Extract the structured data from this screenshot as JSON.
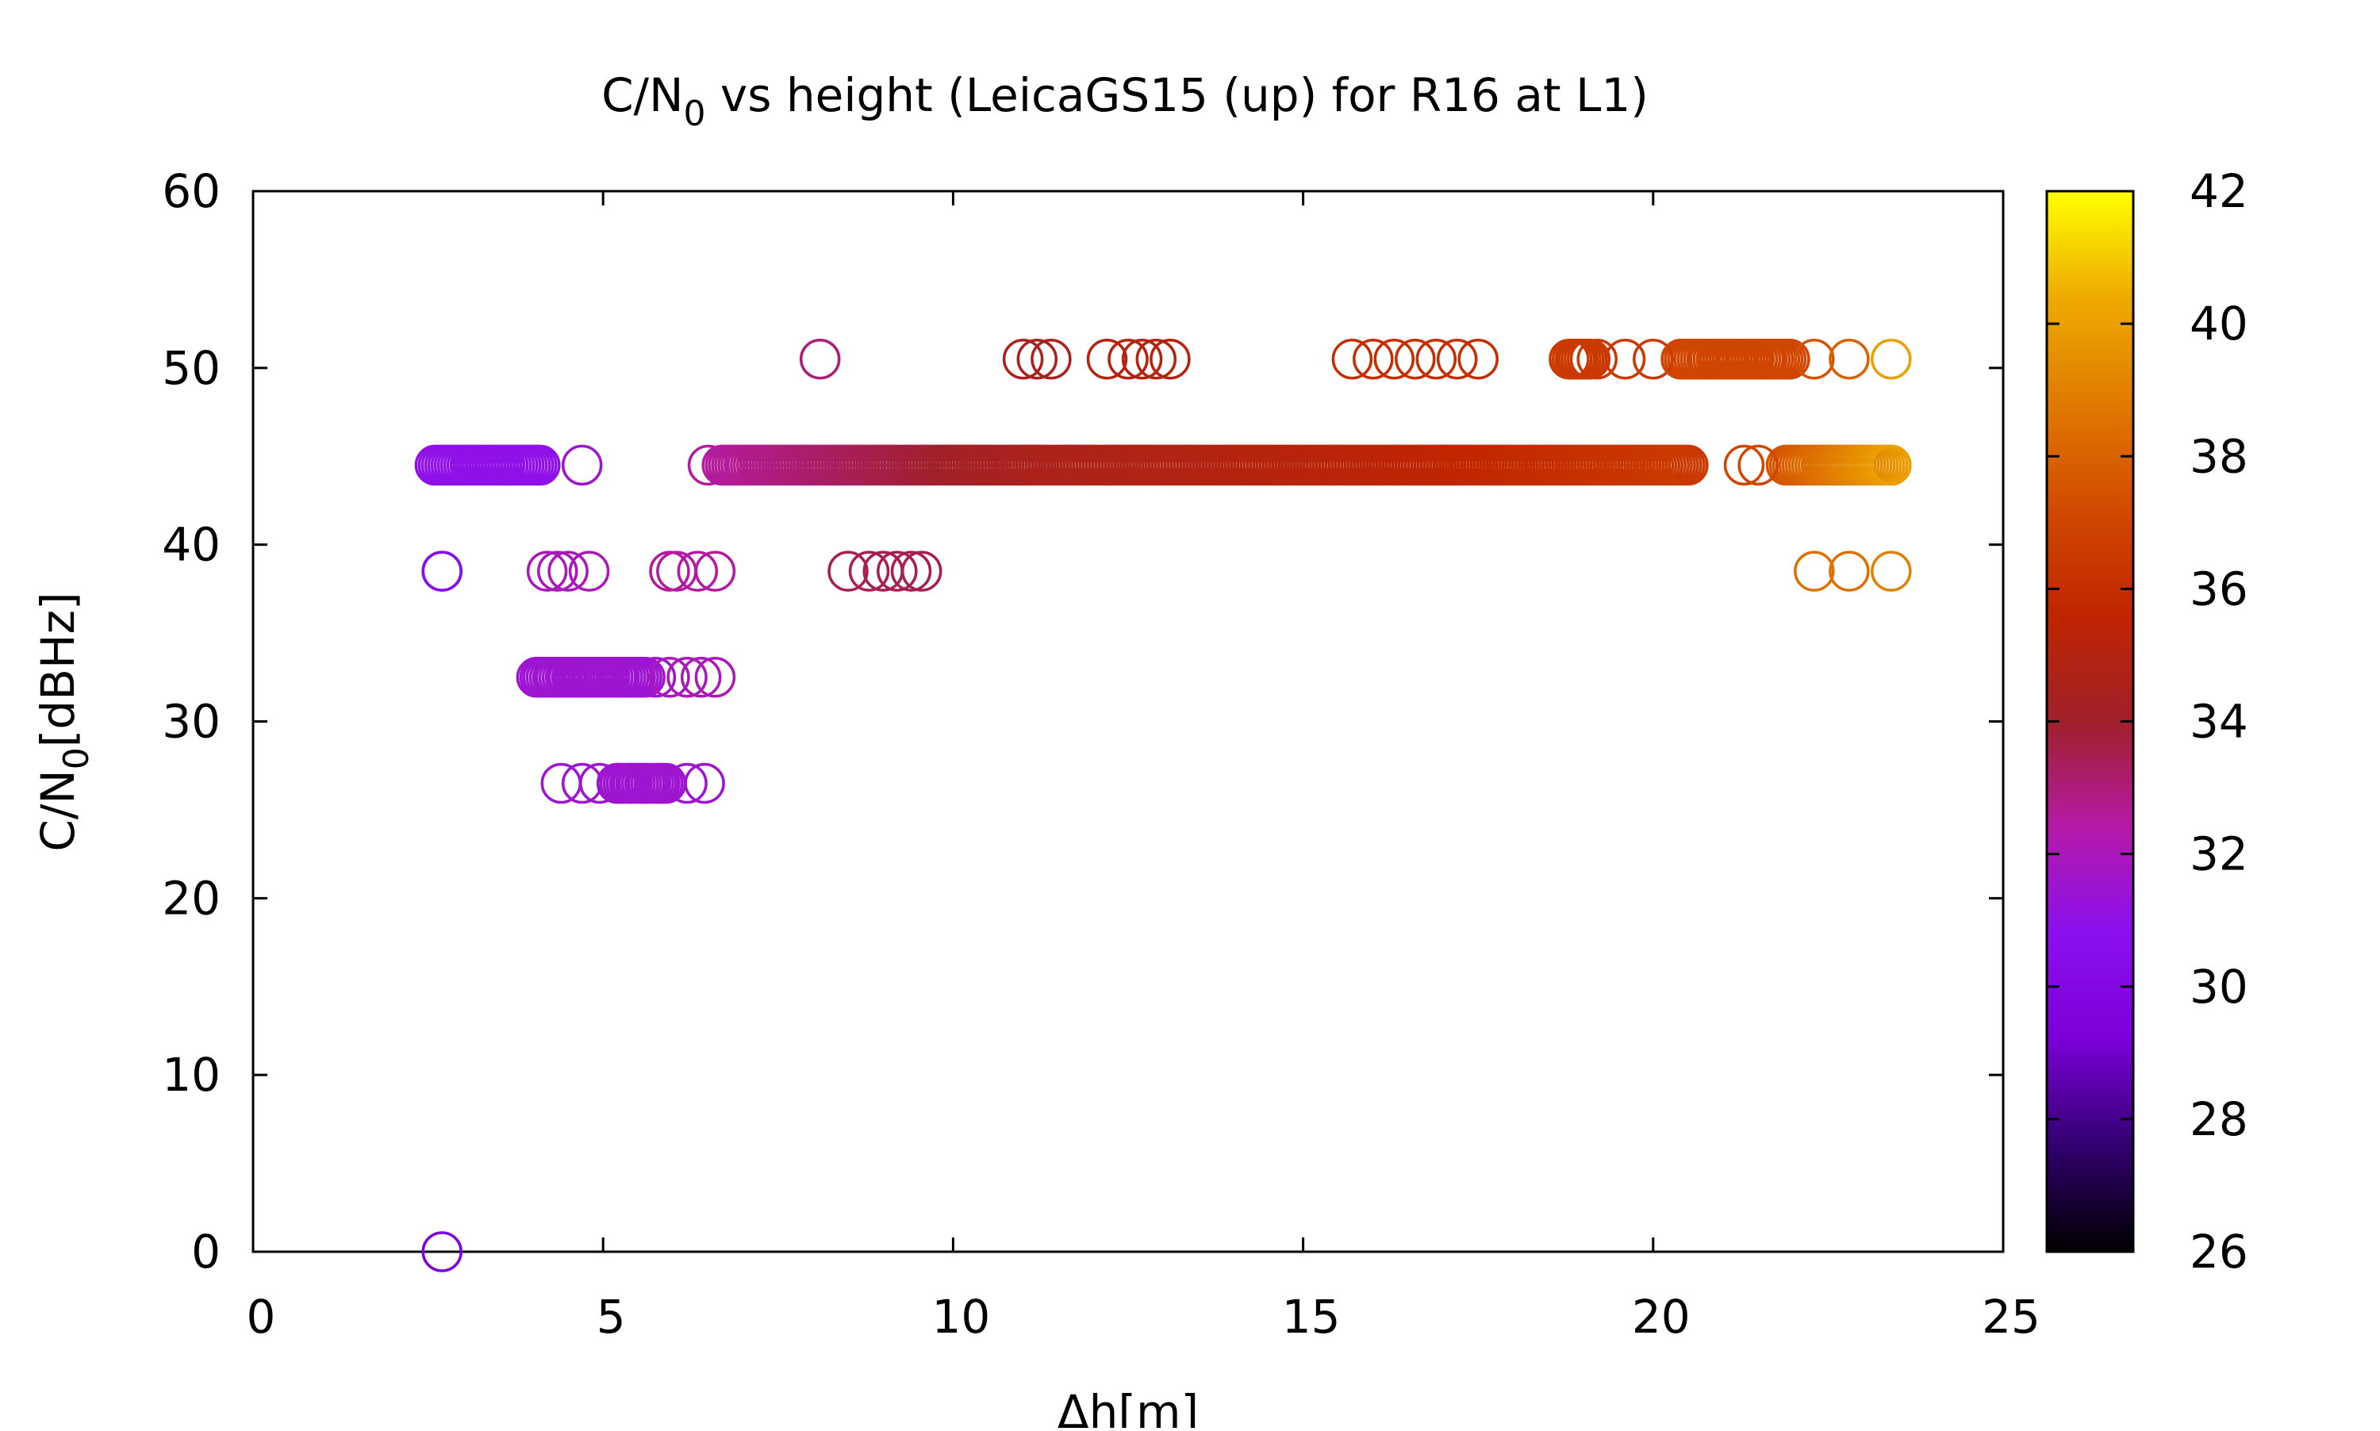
{
  "chart_data": {
    "type": "scatter",
    "title_main": "C/N",
    "title_sub": "0",
    "title_rest": " vs height (LeicaGS15 (up) for R16 at L1)",
    "xlabel": "Δh[m]",
    "ylabel_main": "C/N",
    "ylabel_sub": "0",
    "ylabel_rest": "[dBHz]",
    "xlim": [
      0,
      25
    ],
    "ylim": [
      0,
      60
    ],
    "xticks": [
      "0",
      "5",
      "10",
      "15",
      "20",
      "25"
    ],
    "yticks": [
      "0",
      "10",
      "20",
      "30",
      "40",
      "50",
      "60"
    ],
    "colorbar": {
      "range": [
        26,
        42
      ],
      "ticks": [
        "26",
        "28",
        "30",
        "32",
        "34",
        "36",
        "38",
        "40",
        "42"
      ],
      "colors": [
        "#000000",
        "#320070",
        "#7b00d8",
        "#8a10f0",
        "#b51aa8",
        "#a0202a",
        "#c02500",
        "#d24a00",
        "#e07a00",
        "#eeab00",
        "#ffff00"
      ]
    },
    "marker": "open-circle",
    "grid": false,
    "series": [
      {
        "points": [
          [
            2.7,
            0,
            29.5
          ],
          [
            2.7,
            38.5,
            28.5
          ],
          [
            2.7,
            38.5,
            30.5
          ],
          [
            4.7,
            44.5,
            31.5
          ],
          [
            8.1,
            50.5,
            33
          ],
          [
            4.2,
            38.5,
            32
          ],
          [
            4.5,
            38.5,
            32
          ],
          [
            4.8,
            38.5,
            32
          ],
          [
            4.35,
            38.5,
            32
          ],
          [
            5.95,
            38.5,
            32.5
          ],
          [
            6.05,
            38.5,
            32.5
          ],
          [
            6.35,
            38.5,
            32.5
          ],
          [
            6.6,
            38.5,
            32.5
          ],
          [
            8.5,
            38.5,
            33.5
          ],
          [
            8.8,
            38.5,
            33.5
          ],
          [
            9.0,
            38.5,
            33.5
          ],
          [
            9.2,
            38.5,
            33.5
          ],
          [
            9.4,
            38.5,
            33.5
          ],
          [
            9.55,
            38.5,
            33.5
          ],
          [
            22.3,
            38.5,
            38.5
          ],
          [
            22.8,
            38.5,
            38.5
          ],
          [
            23.4,
            38.5,
            39
          ],
          [
            4.4,
            26.5,
            31.5
          ],
          [
            4.7,
            26.5,
            31.5
          ],
          [
            4.95,
            26.5,
            31.5
          ],
          [
            5.2,
            26.5,
            31.5
          ],
          [
            5.4,
            26.5,
            31.5
          ],
          [
            5.6,
            26.5,
            31.5
          ],
          [
            5.8,
            26.5,
            31.5
          ],
          [
            6.2,
            26.5,
            31.5
          ],
          [
            6.45,
            26.5,
            31.5
          ],
          [
            4.1,
            32.5,
            31.5
          ],
          [
            4.3,
            32.5,
            31.5
          ],
          [
            4.5,
            32.5,
            31.5
          ],
          [
            4.7,
            32.5,
            31.5
          ],
          [
            4.95,
            32.5,
            31.5
          ],
          [
            5.2,
            32.5,
            31.5
          ],
          [
            5.45,
            32.5,
            31.5
          ],
          [
            5.75,
            32.5,
            31.5
          ],
          [
            5.95,
            32.5,
            32
          ],
          [
            6.2,
            32.5,
            32
          ],
          [
            6.4,
            32.5,
            32
          ],
          [
            6.6,
            32.5,
            32
          ],
          [
            11.0,
            50.5,
            34.5
          ],
          [
            11.2,
            50.5,
            34.5
          ],
          [
            11.4,
            50.5,
            34.5
          ],
          [
            12.2,
            50.5,
            35
          ],
          [
            12.5,
            50.5,
            35
          ],
          [
            12.7,
            50.5,
            35
          ],
          [
            12.9,
            50.5,
            35
          ],
          [
            13.1,
            50.5,
            35
          ],
          [
            15.7,
            50.5,
            36
          ],
          [
            16.0,
            50.5,
            36
          ],
          [
            16.3,
            50.5,
            36
          ],
          [
            16.6,
            50.5,
            36
          ],
          [
            16.9,
            50.5,
            36
          ],
          [
            17.2,
            50.5,
            36
          ],
          [
            17.5,
            50.5,
            36
          ],
          [
            18.9,
            50.5,
            36.5
          ],
          [
            19.2,
            50.5,
            36.5
          ],
          [
            19.6,
            50.5,
            36.5
          ],
          [
            20.0,
            50.5,
            36.5
          ],
          [
            20.4,
            50.5,
            37
          ],
          [
            20.8,
            50.5,
            37
          ],
          [
            21.2,
            50.5,
            37
          ],
          [
            21.6,
            50.5,
            37
          ],
          [
            21.95,
            50.5,
            37
          ],
          [
            22.3,
            50.5,
            37.5
          ],
          [
            22.8,
            50.5,
            38
          ],
          [
            23.4,
            50.5,
            40
          ],
          [
            6.5,
            44.5,
            32.5
          ],
          [
            21.3,
            44.5,
            37
          ],
          [
            21.5,
            44.5,
            37
          ],
          [
            23.4,
            44.5,
            40
          ]
        ],
        "bands": [
          {
            "y": 44.5,
            "x_start": 2.6,
            "x_end": 4.1,
            "c_start": 31,
            "c_end": 31
          },
          {
            "y": 44.5,
            "x_start": 6.7,
            "x_end": 11.0,
            "c_start": 32.5,
            "c_end": 34.5
          },
          {
            "y": 44.5,
            "x_start": 11.0,
            "x_end": 17.0,
            "c_start": 34.5,
            "c_end": 35.5
          },
          {
            "y": 44.5,
            "x_start": 17.0,
            "x_end": 20.5,
            "c_start": 35.5,
            "c_end": 36.5
          },
          {
            "y": 44.5,
            "x_start": 21.9,
            "x_end": 23.4,
            "c_start": 37.5,
            "c_end": 40
          },
          {
            "y": 32.5,
            "x_start": 4.05,
            "x_end": 5.6,
            "c_start": 31.5,
            "c_end": 31.5
          },
          {
            "y": 26.5,
            "x_start": 5.2,
            "x_end": 5.9,
            "c_start": 31.5,
            "c_end": 31.5
          },
          {
            "y": 50.5,
            "x_start": 18.8,
            "x_end": 19.1,
            "c_start": 36.5,
            "c_end": 36.5
          },
          {
            "y": 50.5,
            "x_start": 20.4,
            "x_end": 21.9,
            "c_start": 37,
            "c_end": 37
          }
        ]
      }
    ]
  }
}
